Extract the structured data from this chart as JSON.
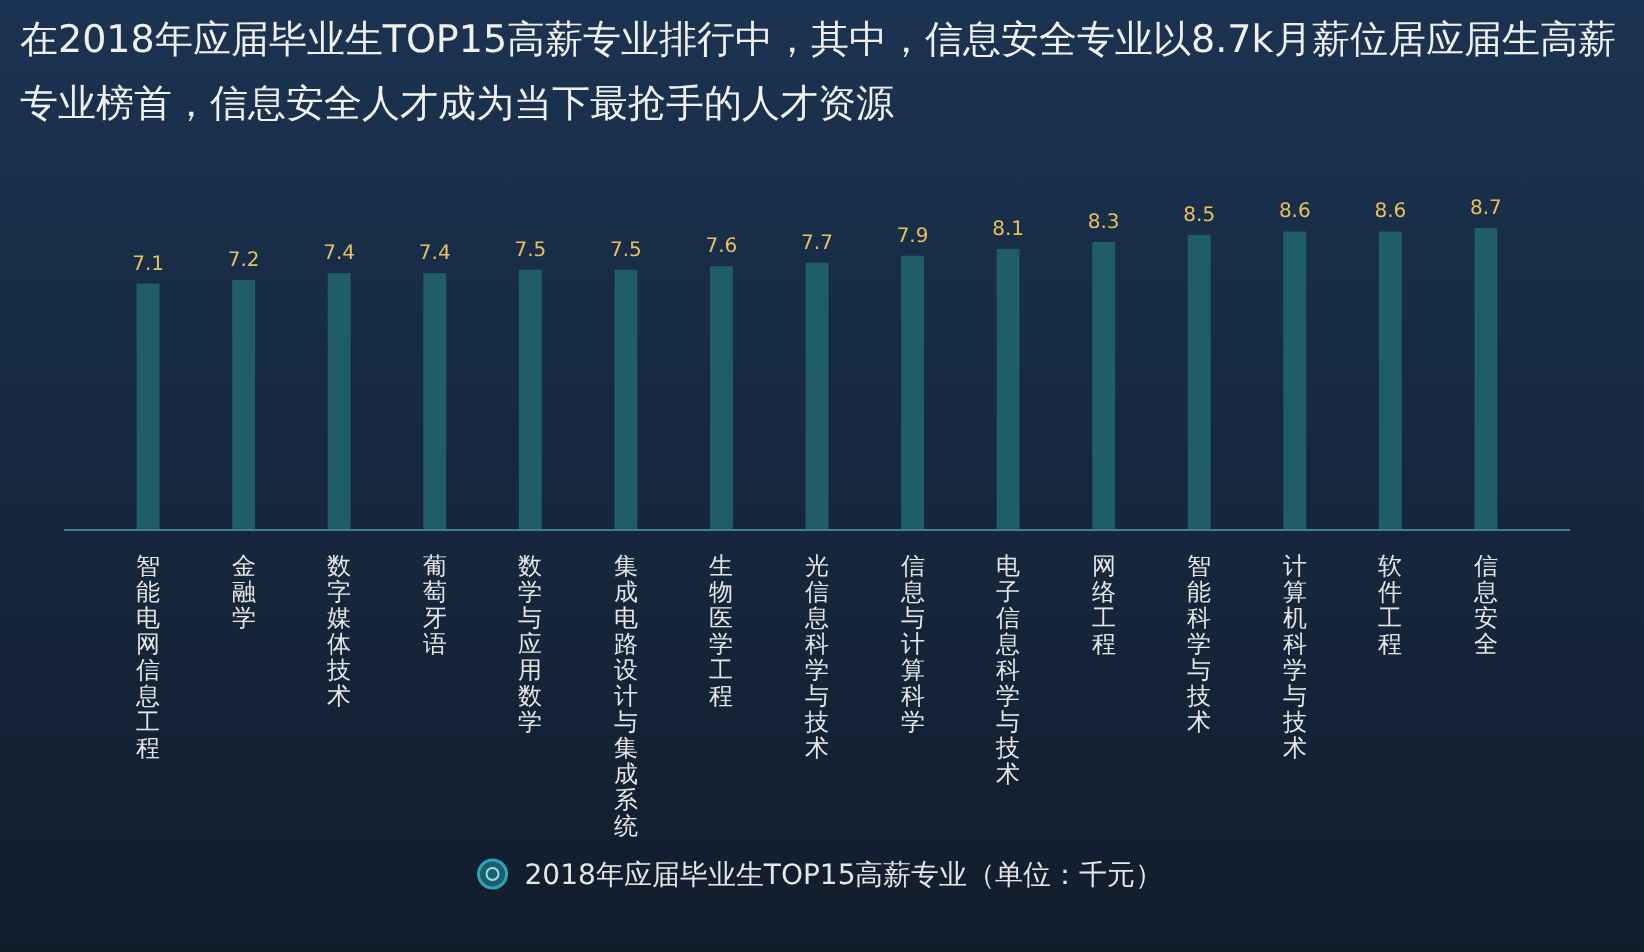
{
  "chart_data": {
    "type": "bar",
    "title": "在2018年应届毕业生TOP15高薪专业排行中，其中，信息安全专业以8.7k月薪位居应届生高薪专业榜首，信息安全人才成为当下最抢手的人才资源",
    "categories": [
      "智能电网信息工程",
      "金融学",
      "数字媒体技术",
      "葡萄牙语",
      "数学与应用数学",
      "集成电路设计与集成系统",
      "生物医学工程",
      "光信息科学与技术",
      "信息与计算科学",
      "电子信息科学与技术",
      "网络工程",
      "智能科学与技术",
      "计算机科学与技术",
      "软件工程",
      "信息安全"
    ],
    "series": [
      {
        "name": "2018年应届毕业生TOP15高薪专业（单位：千元）",
        "color": "#1e5d69",
        "values": [
          7.1,
          7.2,
          7.4,
          7.4,
          7.5,
          7.5,
          7.6,
          7.7,
          7.9,
          8.1,
          8.3,
          8.5,
          8.6,
          8.6,
          8.7
        ]
      }
    ],
    "tick_labels": "x",
    "data_labels": true,
    "legend": "bottom"
  }
}
